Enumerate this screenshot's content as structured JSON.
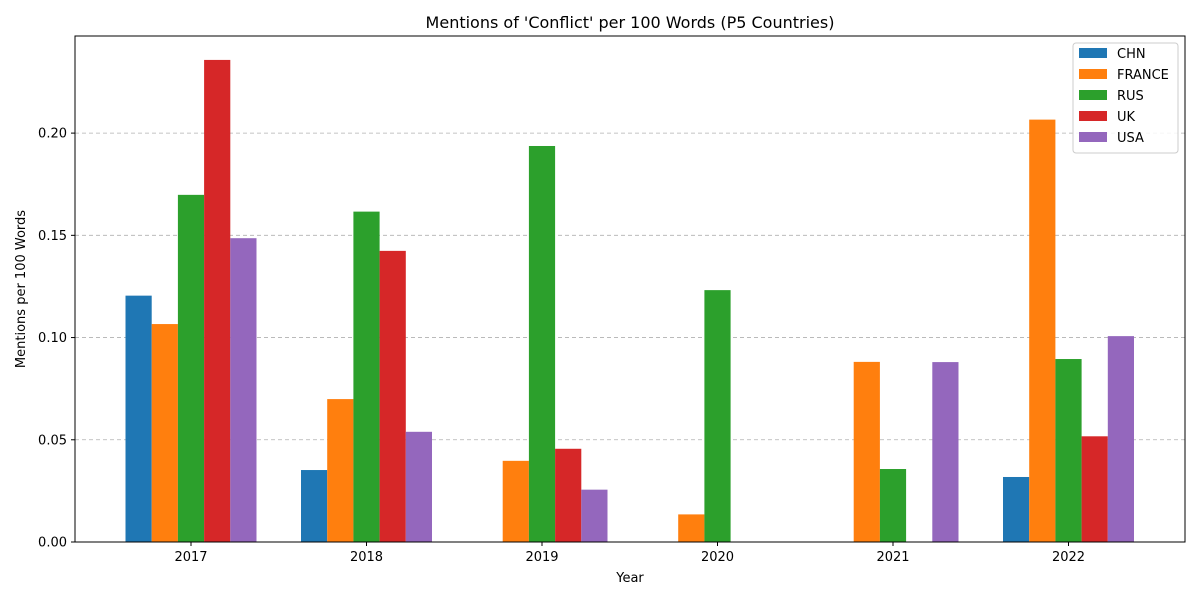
{
  "chart_data": {
    "type": "bar",
    "title": "Mentions of 'Conflict' per 100 Words (P5 Countries)",
    "xlabel": "Year",
    "ylabel": "Mentions per 100 Words",
    "categories": [
      "2017",
      "2018",
      "2019",
      "2020",
      "2021",
      "2022"
    ],
    "ylim": [
      0,
      0.2475
    ],
    "yticks": [
      0.0,
      0.05,
      0.1,
      0.15,
      0.2
    ],
    "ytick_labels": [
      "0.00",
      "0.05",
      "0.10",
      "0.15",
      "0.20"
    ],
    "grid": "horizontal dashed",
    "legend_position": "top-right",
    "series": [
      {
        "name": "CHN",
        "color": "#1f77b4",
        "values": [
          0.1205,
          0.0352,
          0,
          0,
          0,
          0.0318
        ]
      },
      {
        "name": "FRANCE",
        "color": "#ff7f0e",
        "values": [
          0.1066,
          0.0699,
          0.0397,
          0.0135,
          0.0881,
          0.2066
        ]
      },
      {
        "name": "RUS",
        "color": "#2ca02c",
        "values": [
          0.1698,
          0.1616,
          0.1937,
          0.1232,
          0.0357,
          0.0895
        ]
      },
      {
        "name": "UK",
        "color": "#d62728",
        "values": [
          0.2358,
          0.1424,
          0.0456,
          0,
          0,
          0.0517
        ]
      },
      {
        "name": "USA",
        "color": "#9467bd",
        "values": [
          0.1486,
          0.0539,
          0.0256,
          0,
          0.088,
          0.1007
        ]
      }
    ]
  }
}
